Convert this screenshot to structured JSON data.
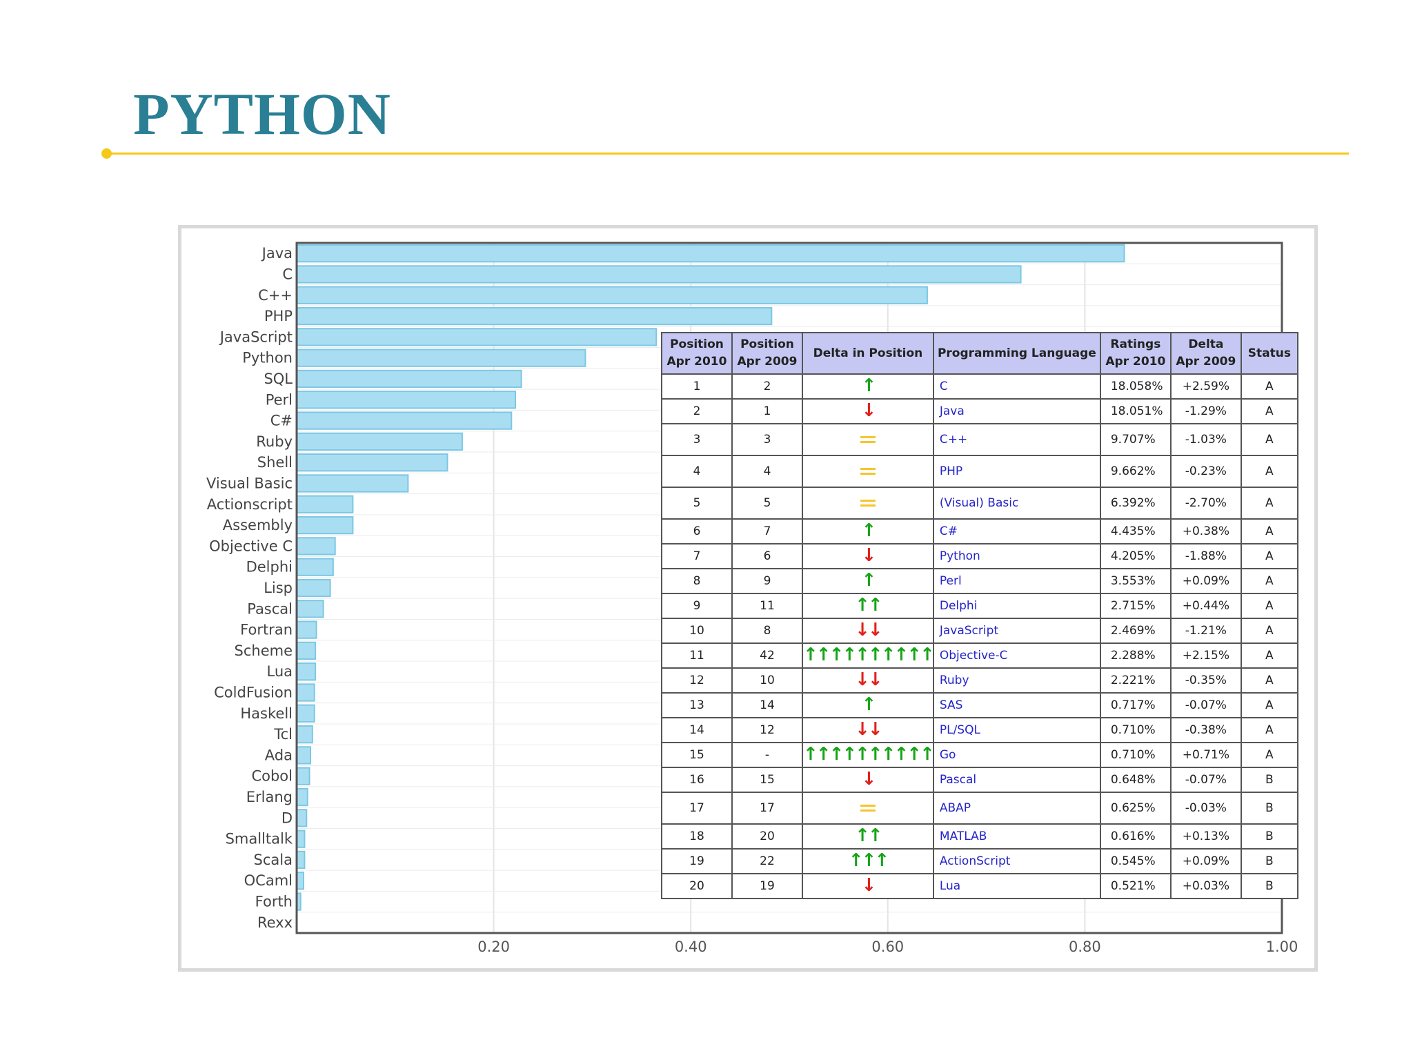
{
  "slide": {
    "title": "PYTHON"
  },
  "colors": {
    "title": "#2a7f94",
    "rule": "#f5c918",
    "bar_fill": "#a9def2",
    "bar_stroke": "#7cc7e4",
    "table_header": "#c6c8f3",
    "language_link": "#2424c8",
    "arrow_up": "#17a317",
    "arrow_down": "#e0201a",
    "equal": "#f7c52a"
  },
  "chart_data": [
    {
      "type": "bar",
      "orientation": "horizontal",
      "categories": [
        "Java",
        "C",
        "C++",
        "PHP",
        "JavaScript",
        "Python",
        "SQL",
        "Perl",
        "C#",
        "Ruby",
        "Shell",
        "Visual Basic",
        "Actionscript",
        "Assembly",
        "Objective C",
        "Delphi",
        "Lisp",
        "Pascal",
        "Fortran",
        "Scheme",
        "Lua",
        "ColdFusion",
        "Haskell",
        "Tcl",
        "Ada",
        "Cobol",
        "Erlang",
        "D",
        "Smalltalk",
        "Scala",
        "OCaml",
        "Forth",
        "Rexx"
      ],
      "values": [
        0.84,
        0.735,
        0.64,
        0.482,
        0.365,
        0.293,
        0.228,
        0.222,
        0.218,
        0.168,
        0.153,
        0.113,
        0.057,
        0.057,
        0.039,
        0.037,
        0.034,
        0.027,
        0.02,
        0.019,
        0.019,
        0.018,
        0.018,
        0.016,
        0.014,
        0.013,
        0.011,
        0.01,
        0.008,
        0.008,
        0.007,
        0.004,
        0.0
      ],
      "xlim": [
        0,
        1.0
      ],
      "xticks": [
        "0.20",
        "0.40",
        "0.60",
        "0.80",
        "1.00"
      ],
      "grid": true,
      "title": "",
      "xlabel": "",
      "ylabel": ""
    },
    {
      "type": "table",
      "columns": [
        "Position Apr 2010",
        "Position Apr 2009",
        "Delta in Position",
        "Programming Language",
        "Ratings Apr 2010",
        "Delta Apr 2009",
        "Status"
      ],
      "header_lines": [
        [
          "Position",
          "Apr 2010"
        ],
        [
          "Position",
          "Apr 2009"
        ],
        [
          "Delta in Position"
        ],
        [
          "Programming Language"
        ],
        [
          "Ratings",
          "Apr 2010"
        ],
        [
          "Delta",
          "Apr 2009"
        ],
        [
          "Status"
        ]
      ],
      "rows": [
        {
          "pos2010": "1",
          "pos2009": "2",
          "delta": "up",
          "count": 1,
          "language": "C",
          "rating": "18.058%",
          "change": "+2.59%",
          "status": "A"
        },
        {
          "pos2010": "2",
          "pos2009": "1",
          "delta": "down",
          "count": 1,
          "language": "Java",
          "rating": "18.051%",
          "change": "-1.29%",
          "status": "A"
        },
        {
          "pos2010": "3",
          "pos2009": "3",
          "delta": "same",
          "count": 1,
          "language": "C++",
          "rating": "9.707%",
          "change": "-1.03%",
          "status": "A"
        },
        {
          "pos2010": "4",
          "pos2009": "4",
          "delta": "same",
          "count": 1,
          "language": "PHP",
          "rating": "9.662%",
          "change": "-0.23%",
          "status": "A"
        },
        {
          "pos2010": "5",
          "pos2009": "5",
          "delta": "same",
          "count": 1,
          "language": "(Visual) Basic",
          "rating": "6.392%",
          "change": "-2.70%",
          "status": "A"
        },
        {
          "pos2010": "6",
          "pos2009": "7",
          "delta": "up",
          "count": 1,
          "language": "C#",
          "rating": "4.435%",
          "change": "+0.38%",
          "status": "A"
        },
        {
          "pos2010": "7",
          "pos2009": "6",
          "delta": "down",
          "count": 1,
          "language": "Python",
          "rating": "4.205%",
          "change": "-1.88%",
          "status": "A"
        },
        {
          "pos2010": "8",
          "pos2009": "9",
          "delta": "up",
          "count": 1,
          "language": "Perl",
          "rating": "3.553%",
          "change": "+0.09%",
          "status": "A"
        },
        {
          "pos2010": "9",
          "pos2009": "11",
          "delta": "up",
          "count": 2,
          "language": "Delphi",
          "rating": "2.715%",
          "change": "+0.44%",
          "status": "A"
        },
        {
          "pos2010": "10",
          "pos2009": "8",
          "delta": "down",
          "count": 2,
          "language": "JavaScript",
          "rating": "2.469%",
          "change": "-1.21%",
          "status": "A"
        },
        {
          "pos2010": "11",
          "pos2009": "42",
          "delta": "up",
          "count": 10,
          "language": "Objective-C",
          "rating": "2.288%",
          "change": "+2.15%",
          "status": "A"
        },
        {
          "pos2010": "12",
          "pos2009": "10",
          "delta": "down",
          "count": 2,
          "language": "Ruby",
          "rating": "2.221%",
          "change": "-0.35%",
          "status": "A"
        },
        {
          "pos2010": "13",
          "pos2009": "14",
          "delta": "up",
          "count": 1,
          "language": "SAS",
          "rating": "0.717%",
          "change": "-0.07%",
          "status": "A"
        },
        {
          "pos2010": "14",
          "pos2009": "12",
          "delta": "down",
          "count": 2,
          "language": "PL/SQL",
          "rating": "0.710%",
          "change": "-0.38%",
          "status": "A"
        },
        {
          "pos2010": "15",
          "pos2009": "-",
          "delta": "up",
          "count": 10,
          "language": "Go",
          "rating": "0.710%",
          "change": "+0.71%",
          "status": "A"
        },
        {
          "pos2010": "16",
          "pos2009": "15",
          "delta": "down",
          "count": 1,
          "language": "Pascal",
          "rating": "0.648%",
          "change": "-0.07%",
          "status": "B"
        },
        {
          "pos2010": "17",
          "pos2009": "17",
          "delta": "same",
          "count": 1,
          "language": "ABAP",
          "rating": "0.625%",
          "change": "-0.03%",
          "status": "B"
        },
        {
          "pos2010": "18",
          "pos2009": "20",
          "delta": "up",
          "count": 2,
          "language": "MATLAB",
          "rating": "0.616%",
          "change": "+0.13%",
          "status": "B"
        },
        {
          "pos2010": "19",
          "pos2009": "22",
          "delta": "up",
          "count": 3,
          "language": "ActionScript",
          "rating": "0.545%",
          "change": "+0.09%",
          "status": "B"
        },
        {
          "pos2010": "20",
          "pos2009": "19",
          "delta": "down",
          "count": 1,
          "language": "Lua",
          "rating": "0.521%",
          "change": "+0.03%",
          "status": "B"
        }
      ]
    }
  ]
}
